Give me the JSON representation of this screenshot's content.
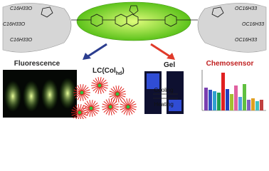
{
  "structure": {
    "left_chains": [
      "C16H33O",
      "C16H33O",
      "C16H33O"
    ],
    "right_chains": [
      "OC16H33",
      "OC16H33",
      "OC16H33"
    ]
  },
  "panels": {
    "fluorescence": "Fluorescence",
    "lc": "LC(Col",
    "lc_sub": "hd",
    "lc_close": ")",
    "gel": "Gel",
    "cooling": "Cooling",
    "heating": "Heating",
    "chemosensor": "Chemosensor"
  }
}
